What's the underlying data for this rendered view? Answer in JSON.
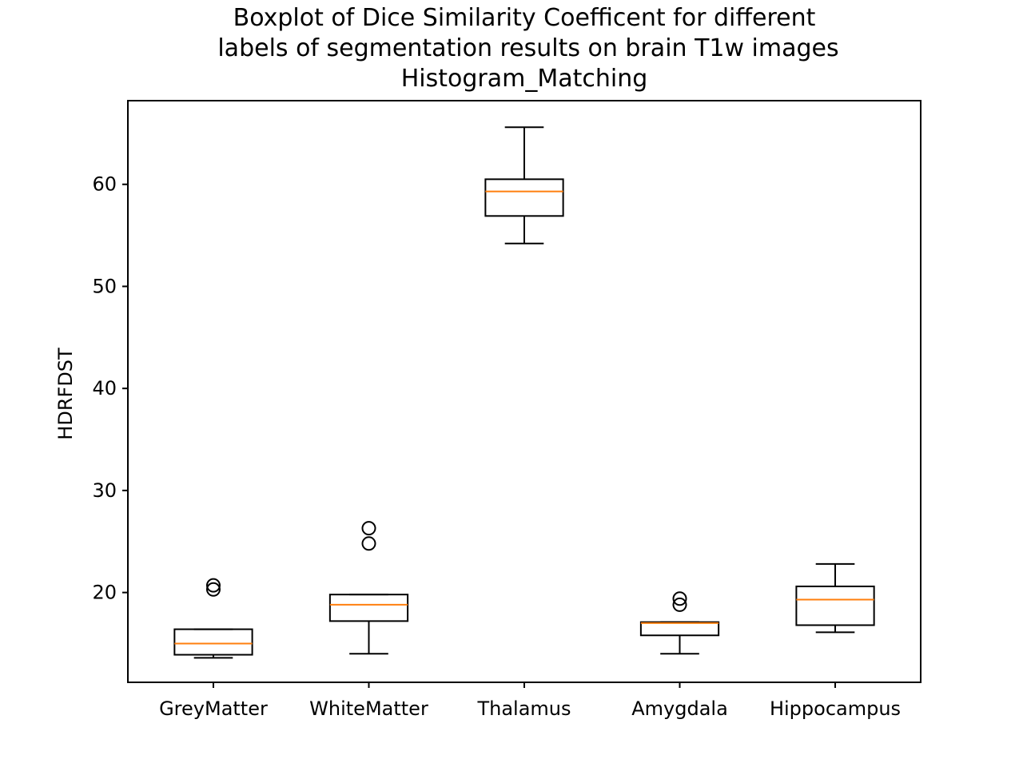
{
  "chart_data": {
    "type": "boxplot",
    "title_lines": [
      "Boxplot of Dice Similarity Coefficent for different",
      "labels of segmentation results on brain T1w images",
      "Histogram_Matching"
    ],
    "xlabel": "",
    "ylabel": "HDRFDST",
    "ylim": [
      11.2,
      68.2
    ],
    "yticks": [
      20,
      30,
      40,
      50,
      60
    ],
    "grid": false,
    "categories": [
      "GreyMatter",
      "WhiteMatter",
      "Thalamus",
      "Amygdala",
      "Hippocampus"
    ],
    "boxes": [
      {
        "whisker_low": 13.6,
        "q1": 13.9,
        "median": 15.0,
        "q3": 16.4,
        "whisker_high": 16.4,
        "outliers": [
          20.3,
          20.7
        ]
      },
      {
        "whisker_low": 14.0,
        "q1": 17.2,
        "median": 18.8,
        "q3": 19.8,
        "whisker_high": 19.8,
        "outliers": [
          24.8,
          26.3
        ]
      },
      {
        "whisker_low": 54.2,
        "q1": 56.9,
        "median": 59.3,
        "q3": 60.5,
        "whisker_high": 65.6,
        "outliers": []
      },
      {
        "whisker_low": 14.0,
        "q1": 15.8,
        "median": 17.0,
        "q3": 17.1,
        "whisker_high": 17.1,
        "outliers": [
          18.8,
          19.4
        ]
      },
      {
        "whisker_low": 16.1,
        "q1": 16.8,
        "median": 19.3,
        "q3": 20.6,
        "whisker_high": 22.8,
        "outliers": []
      }
    ],
    "colors": {
      "box": "#000000",
      "median": "#ff7f0e",
      "flier": "#000000"
    }
  }
}
